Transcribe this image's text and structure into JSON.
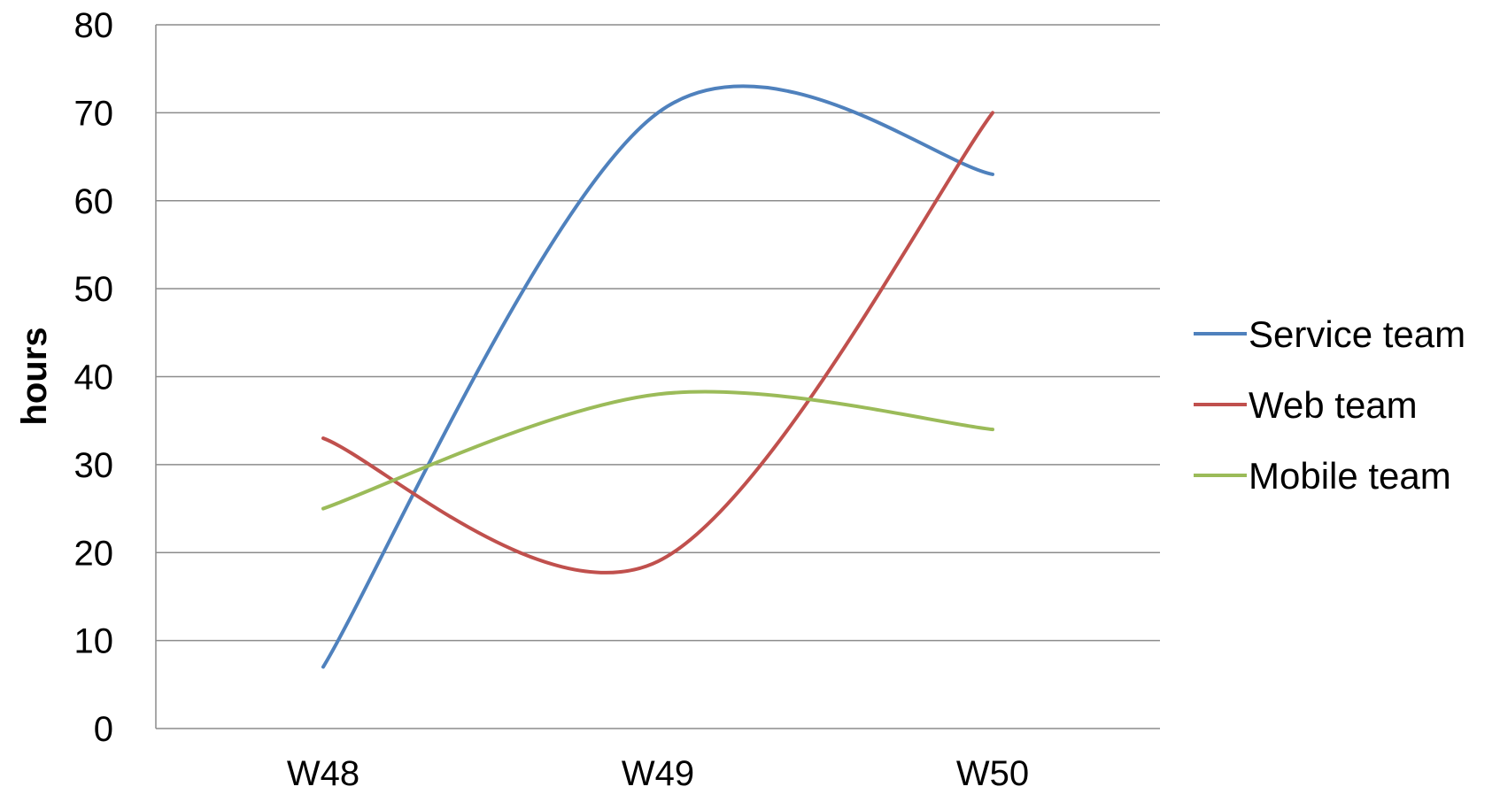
{
  "chart_data": {
    "type": "line",
    "smooth": true,
    "title": "",
    "xlabel": "",
    "ylabel": "hours",
    "ylim": [
      0,
      80
    ],
    "yticks": [
      0,
      10,
      20,
      30,
      40,
      50,
      60,
      70,
      80
    ],
    "categories": [
      "W48",
      "W49",
      "W50"
    ],
    "grid": true,
    "legend_position": "right",
    "series": [
      {
        "name": "Service team",
        "color": "#4F81BD",
        "values": [
          7,
          70,
          63
        ]
      },
      {
        "name": "Web team",
        "color": "#C0504D",
        "values": [
          33,
          19,
          70
        ]
      },
      {
        "name": "Mobile team",
        "color": "#9BBB59",
        "values": [
          25,
          38,
          34
        ]
      }
    ]
  }
}
